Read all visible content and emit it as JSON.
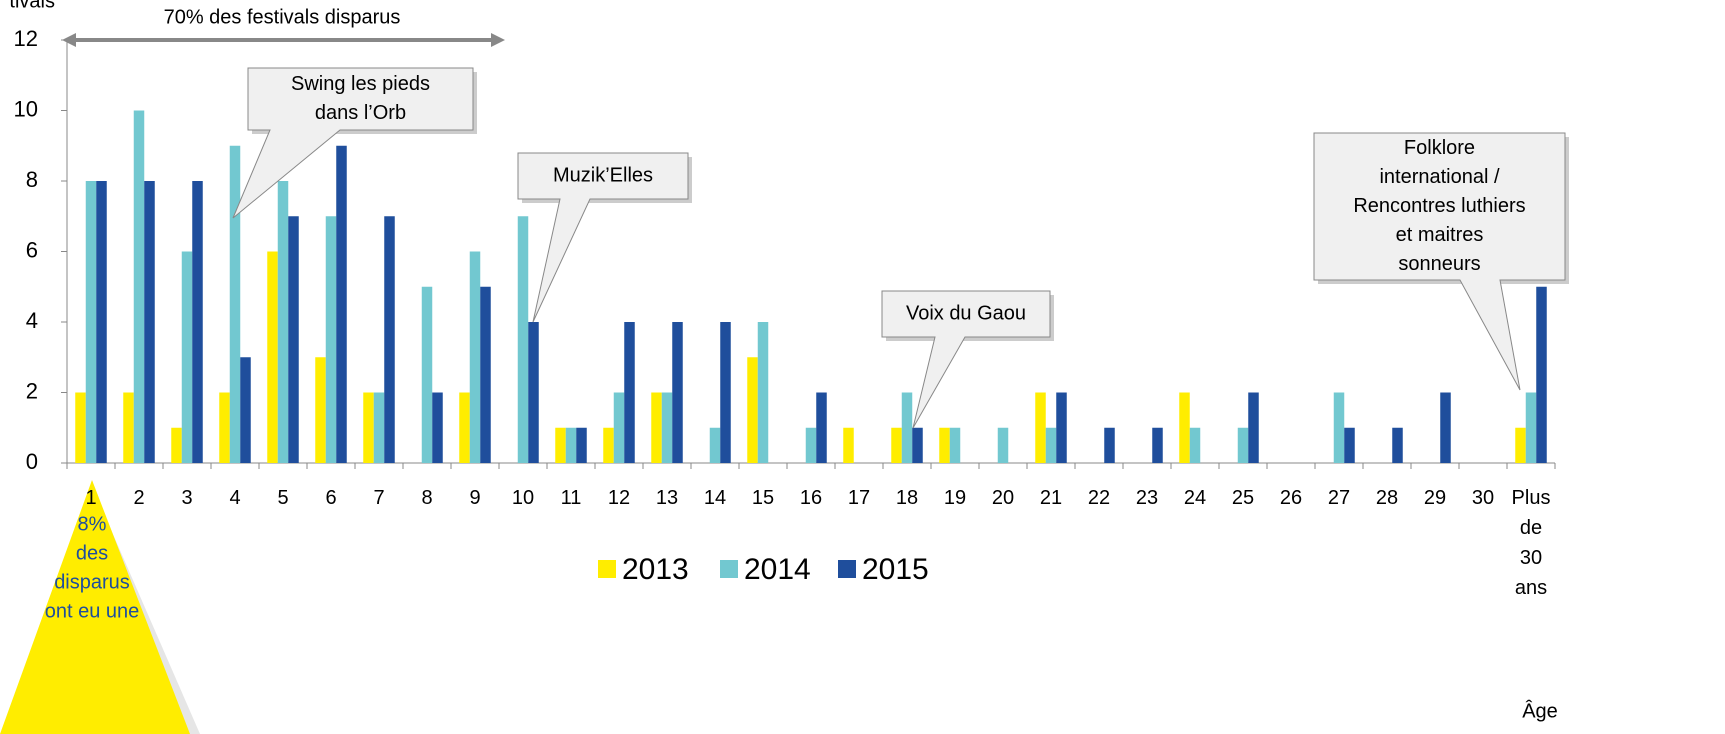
{
  "chart_data": {
    "type": "bar",
    "y_label": "tivals",
    "x_label": "Âge",
    "span_annotation": "70% des festivals disparus",
    "categories": [
      "1",
      "2",
      "3",
      "4",
      "5",
      "6",
      "7",
      "8",
      "9",
      "10",
      "11",
      "12",
      "13",
      "14",
      "15",
      "16",
      "17",
      "18",
      "19",
      "20",
      "21",
      "22",
      "23",
      "24",
      "25",
      "26",
      "27",
      "28",
      "29",
      "30",
      "Plus de 30 ans"
    ],
    "series": [
      {
        "name": "2013",
        "color": "#ffed00",
        "values": [
          2,
          2,
          1,
          2,
          6,
          3,
          2,
          0,
          2,
          0,
          1,
          1,
          2,
          0,
          3,
          0,
          1,
          1,
          1,
          0,
          2,
          0,
          0,
          2,
          0,
          0,
          0,
          0,
          0,
          0,
          1
        ]
      },
      {
        "name": "2014",
        "color": "#72c8d0",
        "values": [
          8,
          10,
          6,
          9,
          8,
          7,
          2,
          5,
          6,
          7,
          1,
          2,
          2,
          1,
          4,
          1,
          0,
          2,
          1,
          1,
          1,
          0,
          0,
          1,
          1,
          0,
          2,
          0,
          0,
          0,
          2
        ]
      },
      {
        "name": "2015",
        "color": "#1f4e9c",
        "values": [
          8,
          8,
          8,
          3,
          7,
          9,
          7,
          2,
          5,
          4,
          1,
          4,
          4,
          4,
          0,
          2,
          0,
          1,
          0,
          0,
          2,
          1,
          1,
          0,
          2,
          0,
          1,
          1,
          2,
          0,
          5
        ]
      }
    ],
    "ylim": [
      0,
      12
    ],
    "yticks": [
      0,
      2,
      4,
      6,
      8,
      10,
      12
    ],
    "callouts": [
      {
        "lines": [
          "Swing les pieds",
          "dans l’Orb"
        ]
      },
      {
        "lines": [
          "Muzik’Elles"
        ]
      },
      {
        "lines": [
          "Voix du Gaou"
        ]
      },
      {
        "lines": [
          "Folklore",
          "international /",
          "Rencontres luthiers",
          "et maitres",
          "sonneurs"
        ]
      }
    ],
    "triangle_note": [
      "8%",
      "des",
      "disparus",
      "ont eu une"
    ]
  }
}
